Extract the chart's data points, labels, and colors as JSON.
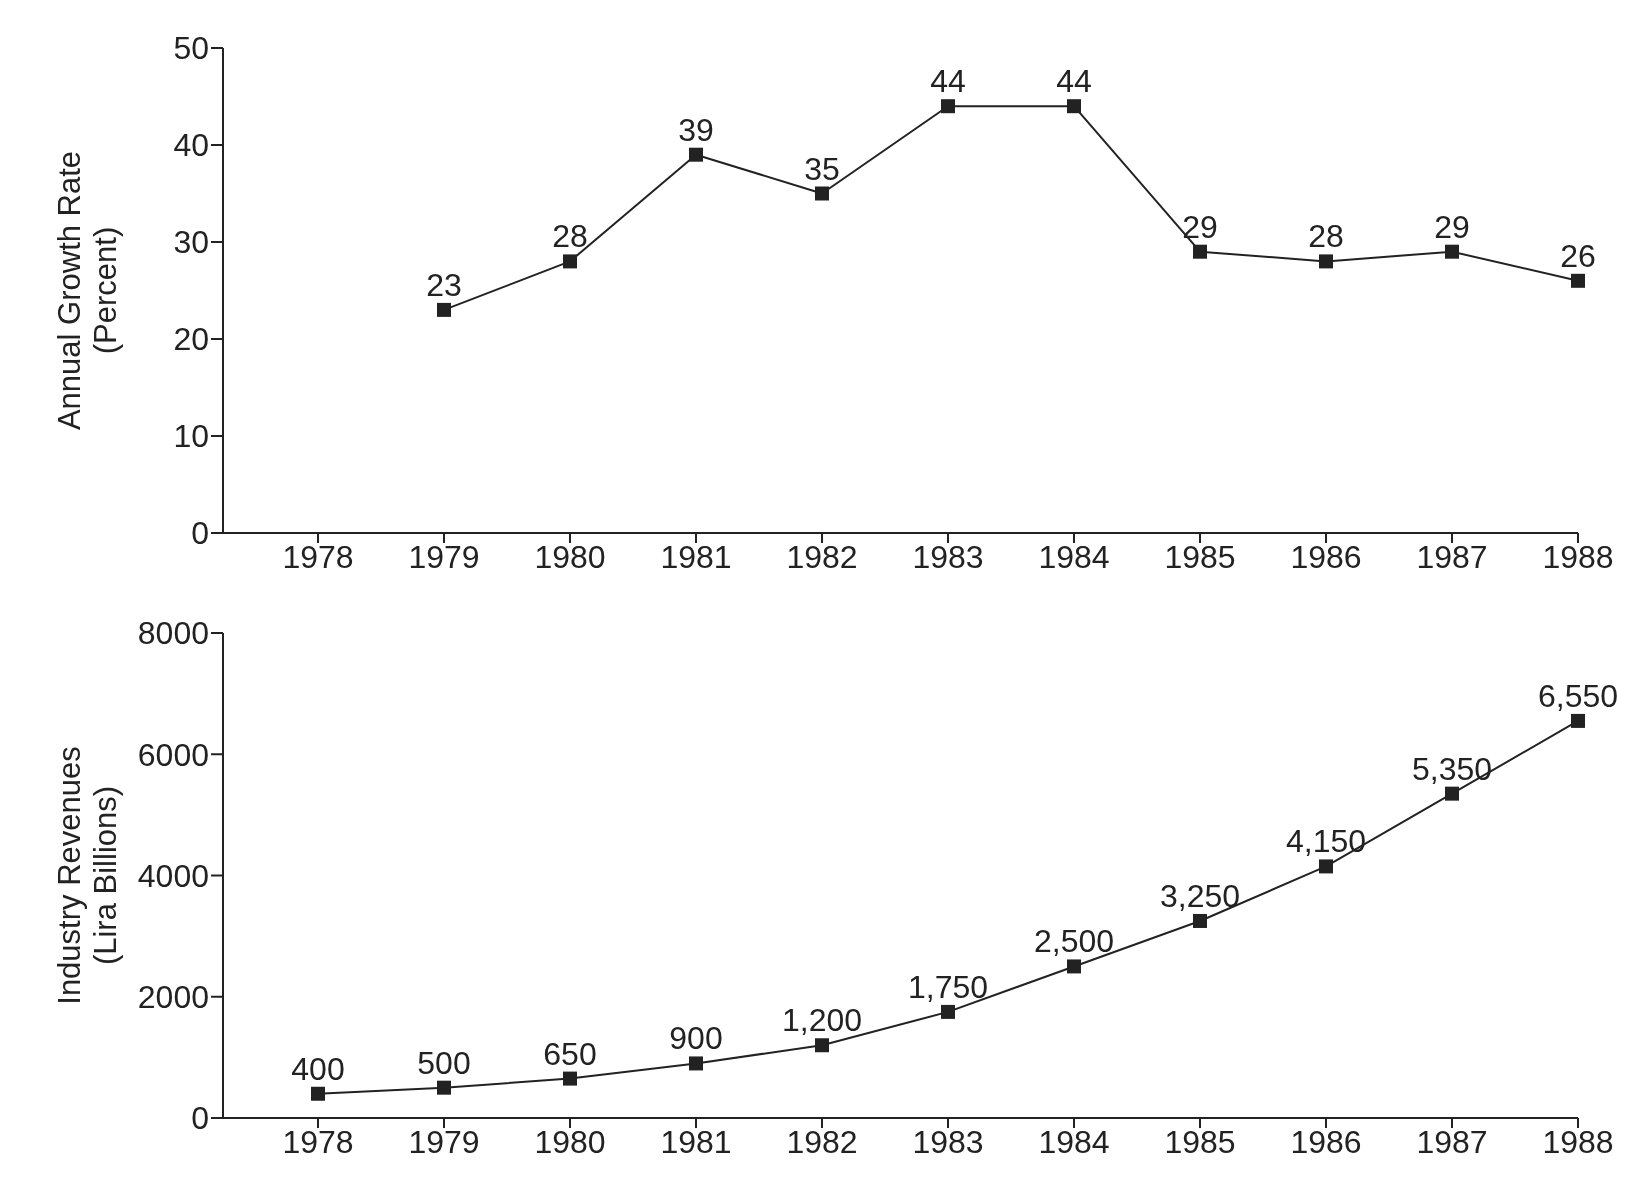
{
  "chart_data": [
    {
      "type": "line",
      "ylabel": "Annual Growth Rate\n(Percent)",
      "categories": [
        "1978",
        "1979",
        "1980",
        "1981",
        "1982",
        "1983",
        "1984",
        "1985",
        "1986",
        "1987",
        "1988"
      ],
      "series": [
        {
          "color": "#222222",
          "values": [
            null,
            23,
            28,
            39,
            35,
            44,
            44,
            29,
            28,
            29,
            26
          ]
        }
      ],
      "ylim": [
        0,
        50
      ],
      "yticks": [
        0,
        10,
        20,
        30,
        40,
        50
      ],
      "marker": "square",
      "data_labels": true,
      "grid": false,
      "legend": false
    },
    {
      "type": "line",
      "ylabel": "Industry Revenues\n(Lira Billions)",
      "categories": [
        "1978",
        "1979",
        "1980",
        "1981",
        "1982",
        "1983",
        "1984",
        "1985",
        "1986",
        "1987",
        "1988"
      ],
      "series": [
        {
          "color": "#222222",
          "values": [
            400,
            500,
            650,
            900,
            1200,
            1750,
            2500,
            3250,
            4150,
            5350,
            6550
          ],
          "value_labels": [
            "400",
            "500",
            "650",
            "900",
            "1,200",
            "1,750",
            "2,500",
            "3,250",
            "4,150",
            "5,350",
            "6,550"
          ]
        }
      ],
      "ylim": [
        0,
        8000
      ],
      "yticks": [
        0,
        2000,
        4000,
        6000,
        8000
      ],
      "marker": "square",
      "grid": false,
      "legend": false
    }
  ]
}
